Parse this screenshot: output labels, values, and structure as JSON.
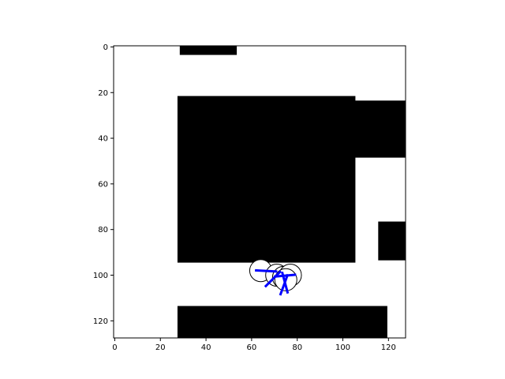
{
  "chart_data": {
    "type": "heatmap",
    "title": "",
    "xlabel": "",
    "ylabel": "",
    "xlim": [
      -0.5,
      127.5
    ],
    "ylim": [
      127.5,
      -0.5
    ],
    "x_ticks": [
      "0",
      "20",
      "40",
      "60",
      "80",
      "100",
      "120"
    ],
    "y_ticks": [
      "0",
      "20",
      "40",
      "60",
      "80",
      "100",
      "120"
    ],
    "grid": false,
    "colors": {
      "free": "#ffffff",
      "occupied": "#000000",
      "robot_outline": "#000000",
      "heading": "#0000ff"
    },
    "obstacles": [
      {
        "name": "top-sliver",
        "x": [
          29,
          53
        ],
        "y": [
          0,
          3
        ]
      },
      {
        "name": "central-block",
        "x": [
          28,
          105
        ],
        "y": [
          22,
          94
        ]
      },
      {
        "name": "right-upper-band",
        "x": [
          105,
          127
        ],
        "y": [
          24,
          48
        ]
      },
      {
        "name": "right-lower-block",
        "x": [
          116,
          127
        ],
        "y": [
          77,
          93
        ]
      },
      {
        "name": "bottom-block",
        "x": [
          28,
          119
        ],
        "y": [
          114,
          127
        ]
      }
    ],
    "robot_poses": [
      {
        "x": 64,
        "y": 98,
        "heading_deg": 3
      },
      {
        "x": 71,
        "y": 100,
        "heading_deg": 135
      },
      {
        "x": 74,
        "y": 101,
        "heading_deg": 75
      },
      {
        "x": 77,
        "y": 100,
        "heading_deg": 175
      },
      {
        "x": 75,
        "y": 102,
        "heading_deg": 110
      }
    ]
  }
}
